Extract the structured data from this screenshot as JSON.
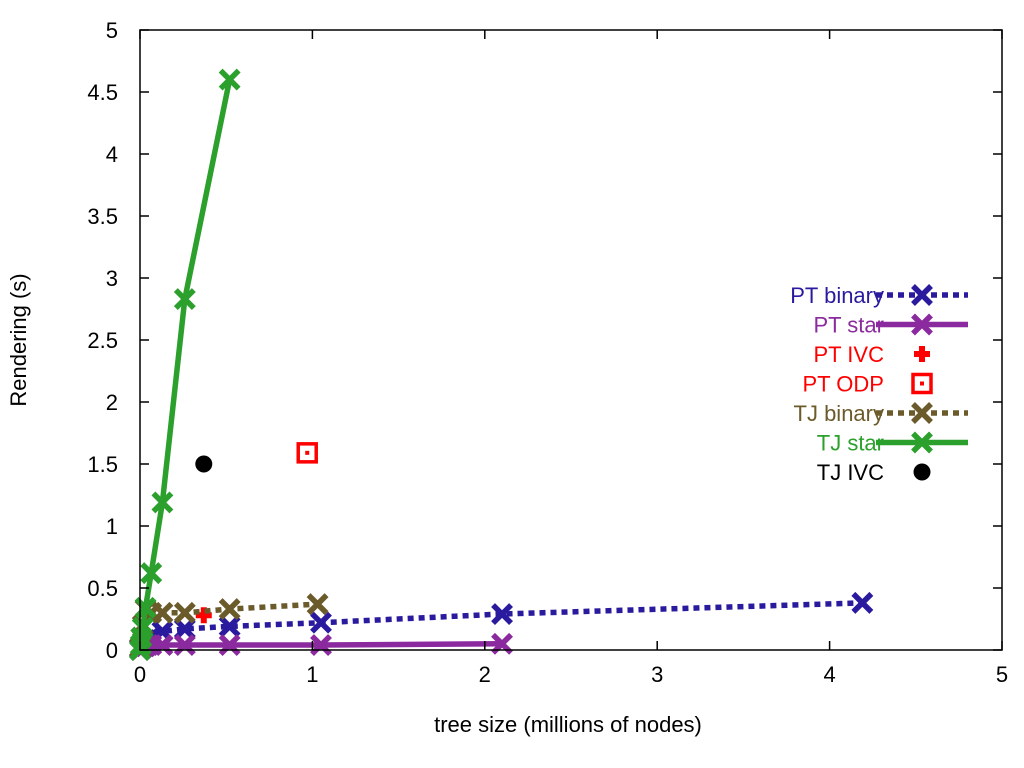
{
  "chart_data": {
    "type": "scatter",
    "title": "",
    "xlabel": "tree size (millions of nodes)",
    "ylabel": "Rendering (s)",
    "xlim": [
      0,
      5
    ],
    "ylim": [
      0,
      5
    ],
    "x_ticks": [
      0,
      1,
      2,
      3,
      4,
      5
    ],
    "y_ticks": [
      0,
      0.5,
      1,
      1.5,
      2,
      2.5,
      3,
      3.5,
      4,
      4.5,
      5
    ],
    "x_tick_labels": [
      "0",
      "1",
      "2",
      "3",
      "4",
      "5"
    ],
    "y_tick_labels": [
      "0",
      "0.5",
      "1",
      "1.5",
      "2",
      "2.5",
      "3",
      "3.5",
      "4",
      "4.5",
      "5"
    ],
    "grid": false,
    "legend_position": "right-middle",
    "series": [
      {
        "name": "PT binary",
        "color": "#2a1a9e",
        "line": "dotted",
        "marker": "x-cross",
        "points": [
          [
            0.0,
            0.01
          ],
          [
            0.004,
            0.02
          ],
          [
            0.008,
            0.03
          ],
          [
            0.016,
            0.05
          ],
          [
            0.032,
            0.08
          ],
          [
            0.065,
            0.11
          ],
          [
            0.13,
            0.15
          ],
          [
            0.26,
            0.17
          ],
          [
            0.52,
            0.19
          ],
          [
            1.05,
            0.22
          ],
          [
            2.1,
            0.29
          ],
          [
            4.19,
            0.38
          ]
        ]
      },
      {
        "name": "PT star",
        "color": "#8b2a9e",
        "line": "solid",
        "marker": "x-cross",
        "points": [
          [
            0.0,
            0.0
          ],
          [
            0.008,
            0.01
          ],
          [
            0.016,
            0.02
          ],
          [
            0.032,
            0.03
          ],
          [
            0.065,
            0.04
          ],
          [
            0.13,
            0.04
          ],
          [
            0.26,
            0.04
          ],
          [
            0.52,
            0.04
          ],
          [
            1.05,
            0.04
          ],
          [
            2.1,
            0.05
          ]
        ]
      },
      {
        "name": "PT IVC",
        "color": "#ff0000",
        "line": "none",
        "marker": "plus",
        "points": [
          [
            0.37,
            0.28
          ]
        ]
      },
      {
        "name": "PT ODP",
        "color": "#ff0000",
        "line": "none",
        "marker": "square-dot",
        "points": [
          [
            0.97,
            1.59
          ]
        ]
      },
      {
        "name": "TJ binary",
        "color": "#6b5a2a",
        "line": "dotted",
        "marker": "x-cross",
        "points": [
          [
            0.0,
            0.02
          ],
          [
            0.008,
            0.1
          ],
          [
            0.016,
            0.2
          ],
          [
            0.032,
            0.33
          ],
          [
            0.065,
            0.3
          ],
          [
            0.13,
            0.3
          ],
          [
            0.26,
            0.3
          ],
          [
            0.52,
            0.33
          ],
          [
            1.03,
            0.37
          ]
        ]
      },
      {
        "name": "TJ star",
        "color": "#2ca02c",
        "line": "solid",
        "marker": "x-cross",
        "points": [
          [
            0.0,
            0.0
          ],
          [
            0.004,
            0.04
          ],
          [
            0.008,
            0.1
          ],
          [
            0.016,
            0.18
          ],
          [
            0.032,
            0.34
          ],
          [
            0.065,
            0.62
          ],
          [
            0.13,
            1.19
          ],
          [
            0.26,
            2.83
          ],
          [
            0.52,
            4.6
          ]
        ]
      },
      {
        "name": "TJ IVC",
        "color": "#000000",
        "line": "none",
        "marker": "filled-circle",
        "points": [
          [
            0.37,
            1.5
          ]
        ]
      }
    ]
  }
}
